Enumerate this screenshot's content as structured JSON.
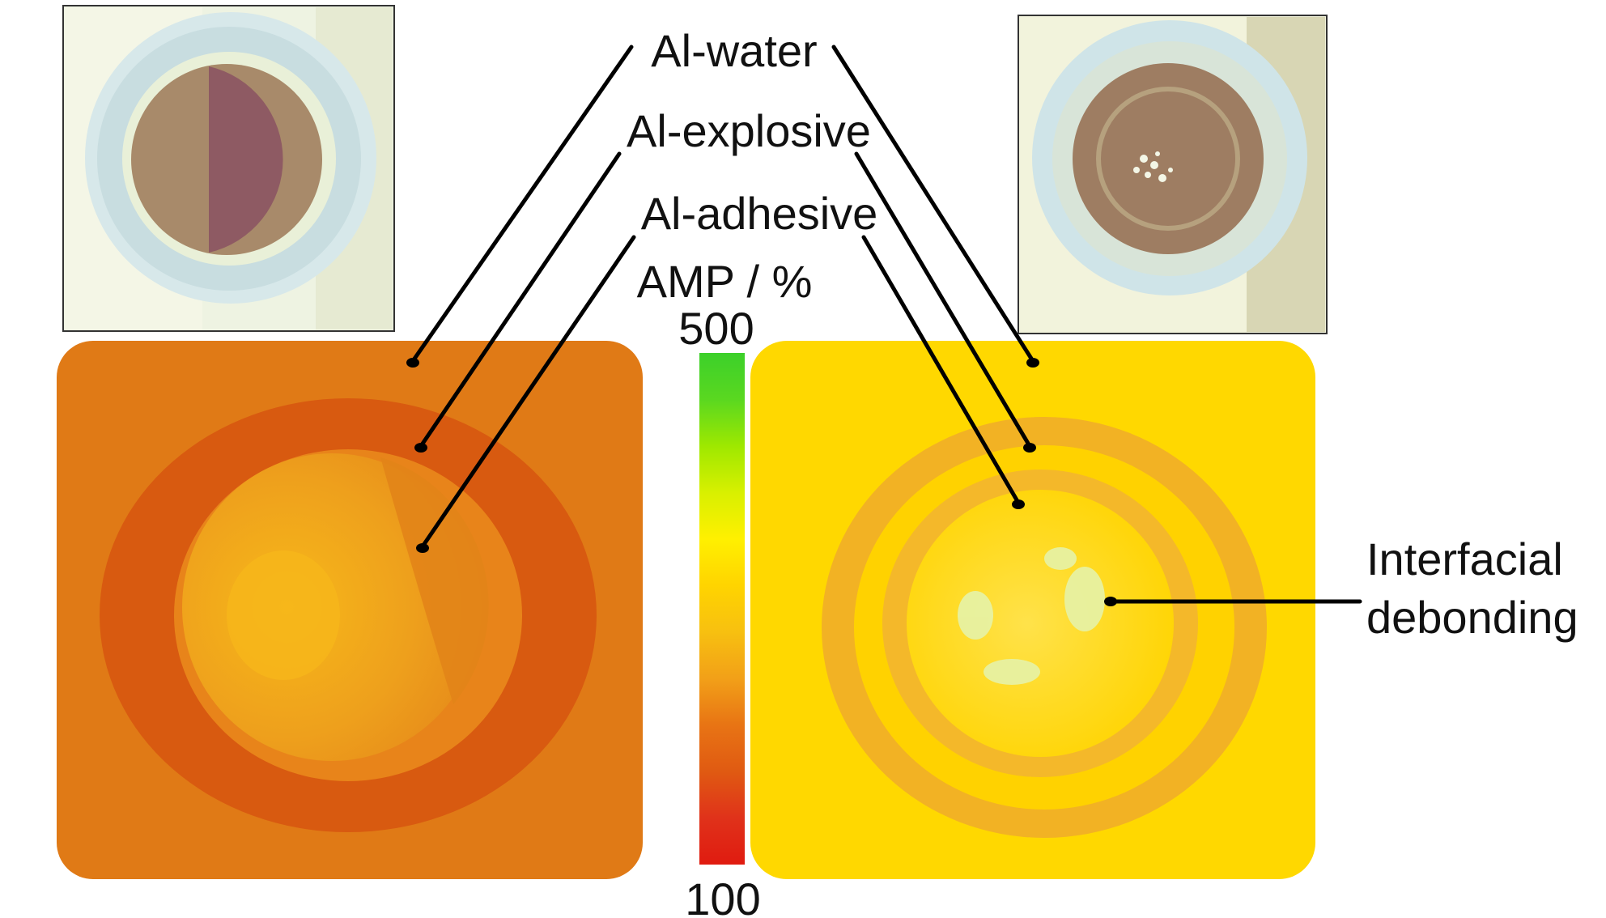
{
  "labels": {
    "al_water": "Al-water",
    "al_explosive": "Al-explosive",
    "al_adhesive": "Al-adhesive",
    "colorbar_title": "AMP / %",
    "colorbar_max": "500",
    "colorbar_min": "100",
    "annotation_line1": "Interfacial",
    "annotation_line2": "debonding"
  },
  "colorbar": {
    "range": [
      100,
      500
    ],
    "stops": [
      "#e01b10",
      "#e0321a",
      "#e05a12",
      "#e87414",
      "#f2a018",
      "#f7c010",
      "#ffd400",
      "#fff000",
      "#d8f000",
      "#9ee800",
      "#5ad820",
      "#3cd02a"
    ]
  },
  "colors": {
    "left_map_bg": "#e07a16",
    "left_map_ring": "#d85a10",
    "left_map_core": "#eea81c",
    "right_map_bg": "#ffd800",
    "right_map_ring": "#f0ac24",
    "right_map_core": "#ffd400",
    "leader_line": "#000000"
  }
}
